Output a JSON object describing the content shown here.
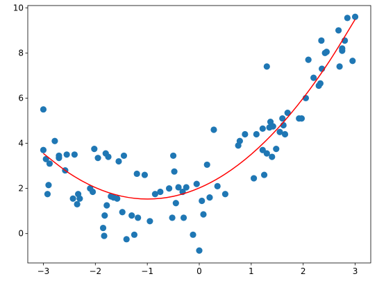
{
  "chart_data": {
    "type": "scatter",
    "title": "",
    "xlabel": "",
    "ylabel": "",
    "xlim": [
      -3.3,
      3.3
    ],
    "ylim": [
      -1.3,
      10.1
    ],
    "xticks": [
      -3,
      -2,
      -1,
      0,
      1,
      2,
      3
    ],
    "yticks": [
      0,
      2,
      4,
      6,
      8,
      10
    ],
    "grid": false,
    "legend": false,
    "colors": {
      "points": "#1f77b4",
      "fit_line": "#ff0000",
      "axes": "#000000",
      "background": "#ffffff"
    },
    "series": [
      {
        "kind": "points",
        "x": [
          -3.0,
          -3.0,
          -2.95,
          -2.92,
          -2.9,
          -2.88,
          -2.78,
          -2.7,
          -2.7,
          -2.58,
          -2.55,
          -2.43,
          -2.4,
          -2.35,
          -2.33,
          -2.3,
          -2.1,
          -2.05,
          -2.02,
          -1.95,
          -1.85,
          -1.83,
          -1.82,
          -1.8,
          -1.78,
          -1.75,
          -1.7,
          -1.65,
          -1.58,
          -1.55,
          -1.48,
          -1.45,
          -1.4,
          -1.3,
          -1.25,
          -1.2,
          -1.18,
          -1.05,
          -0.95,
          -0.85,
          -0.75,
          -0.58,
          -0.52,
          -0.5,
          -0.48,
          -0.45,
          -0.4,
          -0.32,
          -0.3,
          -0.25,
          -0.12,
          -0.05,
          0.0,
          0.05,
          0.08,
          0.15,
          0.2,
          0.28,
          0.35,
          0.5,
          0.75,
          0.78,
          0.88,
          1.05,
          1.1,
          1.22,
          1.22,
          1.25,
          1.3,
          1.3,
          1.35,
          1.37,
          1.4,
          1.42,
          1.48,
          1.55,
          1.6,
          1.62,
          1.65,
          1.7,
          1.92,
          1.97,
          2.05,
          2.1,
          2.2,
          2.3,
          2.33,
          2.35,
          2.36,
          2.42,
          2.45,
          2.68,
          2.7,
          2.75,
          2.75,
          2.8,
          2.85,
          2.95,
          3.0
        ],
        "y": [
          3.7,
          5.5,
          3.3,
          1.75,
          2.15,
          3.1,
          4.1,
          3.45,
          3.35,
          2.8,
          3.5,
          1.55,
          3.5,
          1.3,
          1.75,
          1.55,
          2.0,
          1.85,
          3.75,
          3.35,
          0.25,
          -0.1,
          0.8,
          3.55,
          1.25,
          3.4,
          1.65,
          1.6,
          1.55,
          3.2,
          0.95,
          3.45,
          -0.25,
          0.8,
          -0.05,
          2.65,
          0.7,
          2.6,
          0.55,
          1.75,
          1.85,
          2.0,
          0.7,
          3.45,
          2.75,
          1.35,
          2.05,
          1.85,
          0.7,
          2.05,
          -0.05,
          2.2,
          -0.75,
          1.45,
          0.85,
          3.05,
          1.6,
          4.6,
          2.1,
          1.75,
          3.9,
          4.1,
          4.4,
          2.45,
          4.4,
          4.65,
          3.7,
          2.6,
          3.55,
          7.4,
          4.7,
          4.95,
          3.4,
          4.75,
          3.75,
          4.5,
          5.1,
          4.8,
          4.4,
          5.35,
          5.1,
          5.1,
          6.0,
          7.7,
          6.9,
          6.55,
          6.65,
          8.55,
          7.3,
          8.0,
          8.05,
          9.0,
          7.4,
          8.1,
          8.2,
          8.55,
          9.55,
          7.65,
          9.6
        ]
      },
      {
        "kind": "line",
        "x": [
          -3.0,
          -2.5,
          -2.0,
          -1.5,
          -1.0,
          -0.5,
          0.0,
          0.5,
          1.0,
          1.5,
          2.0,
          2.5,
          3.0
        ],
        "y": [
          3.55,
          2.67,
          2.04,
          1.66,
          1.53,
          1.65,
          2.02,
          2.64,
          3.51,
          4.63,
          6.0,
          7.62,
          9.49
        ]
      }
    ]
  }
}
